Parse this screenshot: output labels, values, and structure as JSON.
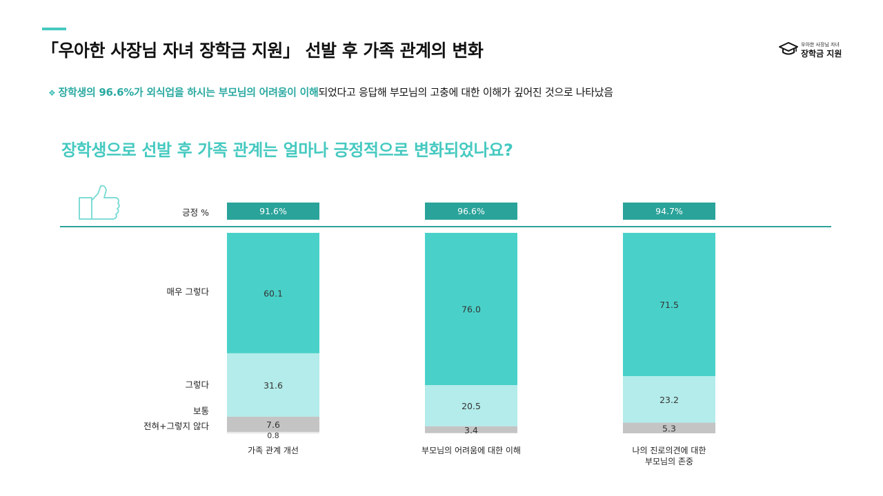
{
  "header": {
    "title": "「우아한 사장님 자녀 장학금 지원」 선발 후 가족 관계의 변화",
    "logo_small": "우아한 사장님 자녀",
    "logo_big": "장학금 지원",
    "logo_icon": "graduation-cap-icon"
  },
  "summary": {
    "bullet": "❖",
    "highlight": "장학생의 96.6%가 외식업을 하시는 부모님의 어려움이 이해",
    "rest": "되었다고 응답해 부모님의 고충에 대한 이해가 깊어진 것으로 나타났음"
  },
  "question": "장학생으로 선발 후 가족 관계는 얼마나 긍정적으로 변화되었나요?",
  "colors": {
    "accent": "#45c9c0",
    "very_positive": "#49d1c9",
    "positive": "#b3ecea",
    "neutral": "#c4c4c4",
    "negative": "#e8e8e8",
    "positive_box": "#2aa39a",
    "divider": "#2aa39a"
  },
  "chart_data": {
    "type": "bar",
    "stacked": true,
    "categories": [
      "가족 관계 개선",
      "부모님의 어려움에 대한 이해",
      "나의 진로의견에 대한\n부모님의 존중"
    ],
    "positive_label": "긍정 %",
    "positive_values": [
      "91.6%",
      "96.6%",
      "94.7%"
    ],
    "series": [
      {
        "name": "매우 그렇다",
        "values": [
          60.1,
          76.0,
          71.5
        ]
      },
      {
        "name": "그렇다",
        "values": [
          31.6,
          20.5,
          23.2
        ]
      },
      {
        "name": "보통",
        "values": [
          7.6,
          3.4,
          5.3
        ]
      },
      {
        "name": "전혀+그렇지 않다",
        "values": [
          0.8,
          null,
          null
        ]
      }
    ],
    "value_labels": [
      [
        "60.1",
        "76.0",
        "71.5"
      ],
      [
        "31.6",
        "20.5",
        "23.2"
      ],
      [
        "7.6",
        "3.4",
        "5.3"
      ],
      [
        "0.8",
        "",
        ""
      ]
    ],
    "ylim": [
      0,
      100
    ],
    "legend": "left row labels"
  }
}
